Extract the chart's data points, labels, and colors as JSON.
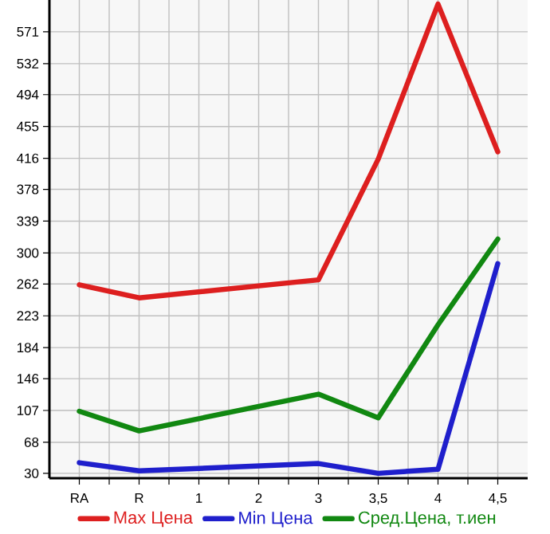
{
  "chart_data": {
    "type": "line",
    "categories": [
      "RA",
      "R",
      "1",
      "2",
      "3",
      "3,5",
      "4",
      "4,5"
    ],
    "series": [
      {
        "name": "Max Цена",
        "color": "#dd1f1f",
        "values": [
          261,
          245,
          null,
          null,
          267,
          415,
          605,
          424
        ]
      },
      {
        "name": "Min Цена",
        "color": "#1f1fcc",
        "values": [
          43,
          33,
          null,
          null,
          42,
          30,
          35,
          287
        ]
      },
      {
        "name": "Сред.Цена, т.иен",
        "color": "#118811",
        "values": [
          106,
          82,
          null,
          null,
          127,
          98,
          212,
          317
        ]
      }
    ],
    "ylim": [
      24,
      610
    ],
    "yticks": [
      30,
      68,
      107,
      146,
      184,
      223,
      262,
      300,
      339,
      378,
      416,
      455,
      494,
      532,
      571
    ],
    "grid": true,
    "legend": "bottom",
    "marker": "none",
    "line_style": "solid"
  }
}
